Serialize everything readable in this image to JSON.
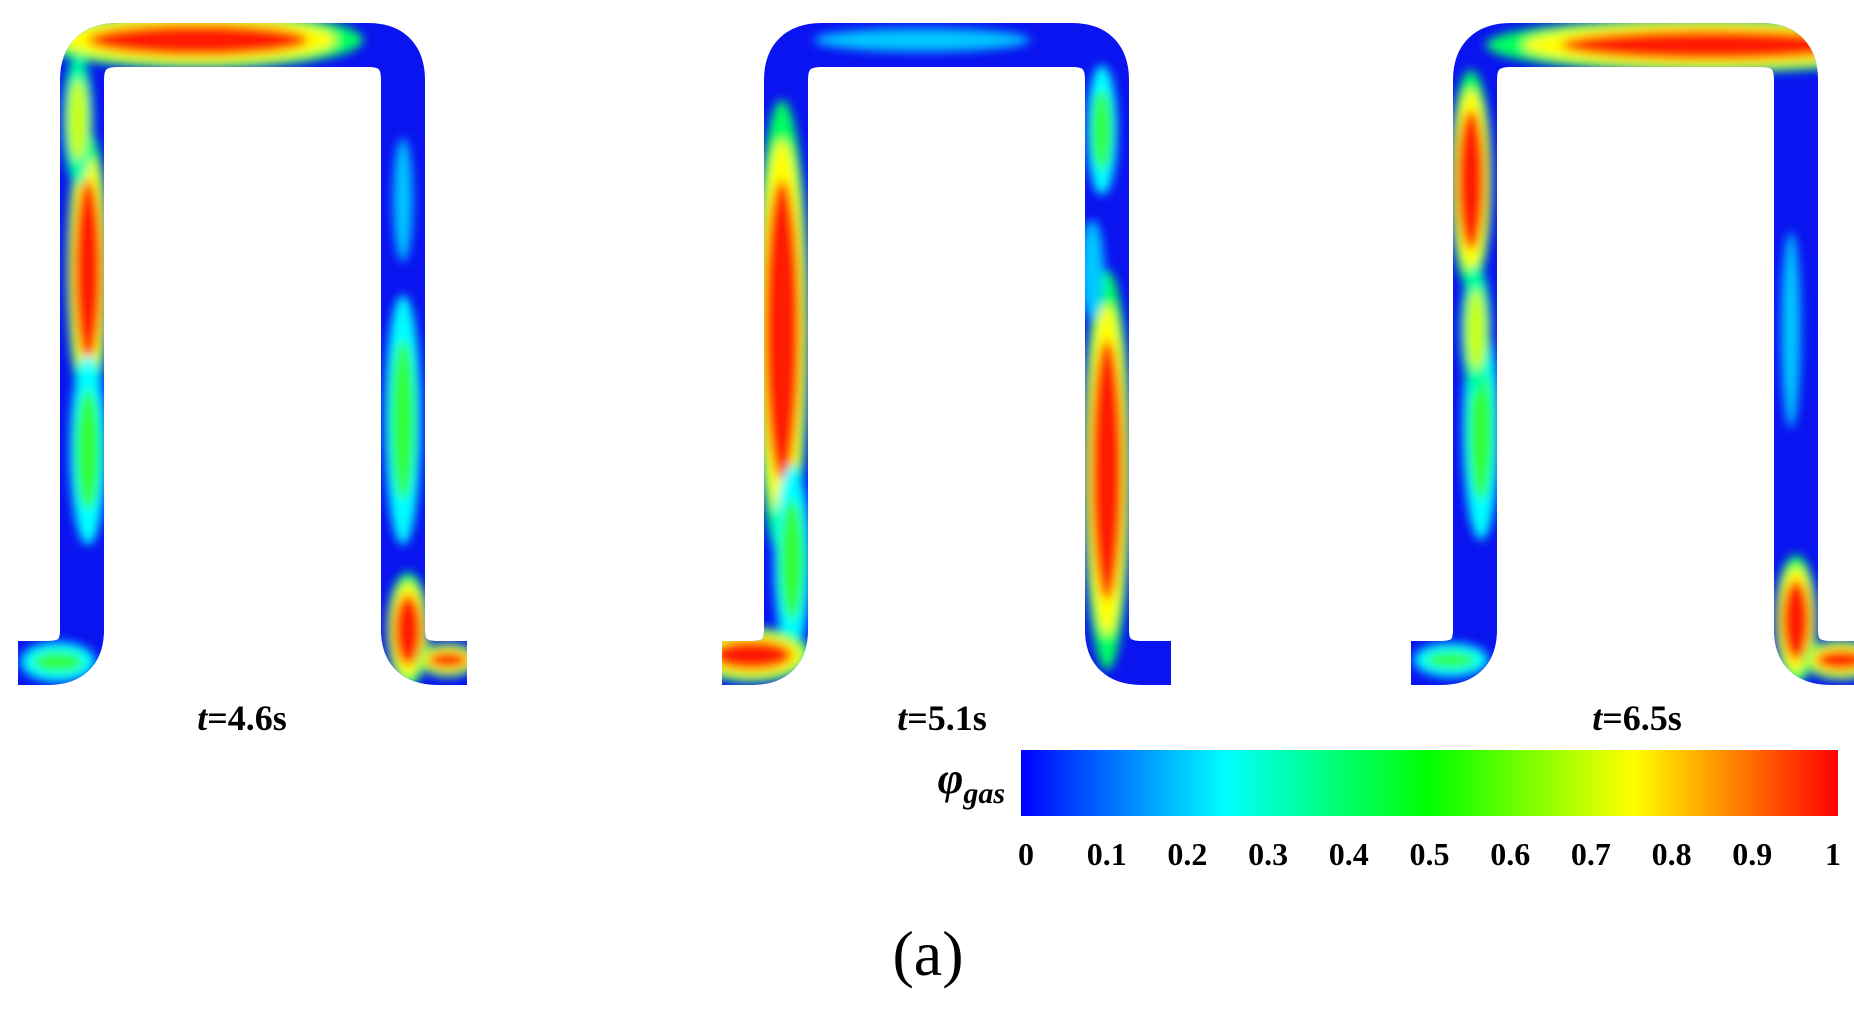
{
  "panels": [
    {
      "variable": "t",
      "text": "=4.6s"
    },
    {
      "variable": "t",
      "text": "=5.1s"
    },
    {
      "variable": "t",
      "text": "=6.5s"
    }
  ],
  "colorbar": {
    "symbol": "φ",
    "subscript": "gas",
    "lim": [
      0,
      1
    ],
    "ticks": [
      0,
      0.1,
      0.2,
      0.3,
      0.4,
      0.5,
      0.6,
      0.7,
      0.8,
      0.9,
      1
    ],
    "colors": [
      "#0000ff",
      "#00ffff",
      "#00ff00",
      "#ffff00",
      "#ff0000"
    ]
  },
  "caption": "(a)"
}
